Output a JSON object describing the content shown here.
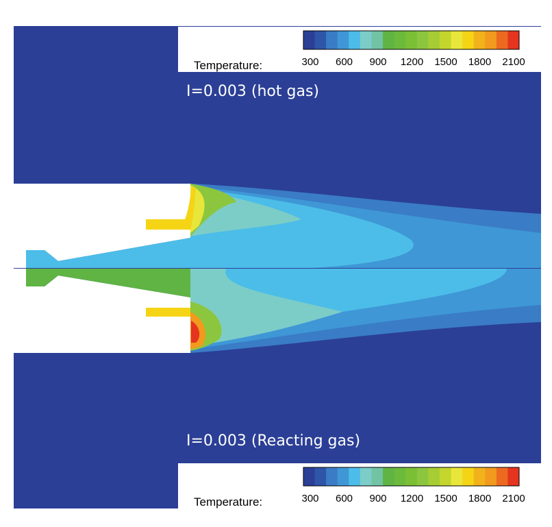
{
  "top_panel": {
    "label": "I=0.003 (hot gas)",
    "legend": {
      "title": "Temperature:",
      "ticks": [
        "300",
        "600",
        "900",
        "1200",
        "1500",
        "1800",
        "2100"
      ]
    }
  },
  "bottom_panel": {
    "label": "I=0.003 (Reacting gas)",
    "legend": {
      "title": "Temperature:",
      "ticks": [
        "300",
        "600",
        "900",
        "1200",
        "1500",
        "1800",
        "2100"
      ]
    }
  }
}
